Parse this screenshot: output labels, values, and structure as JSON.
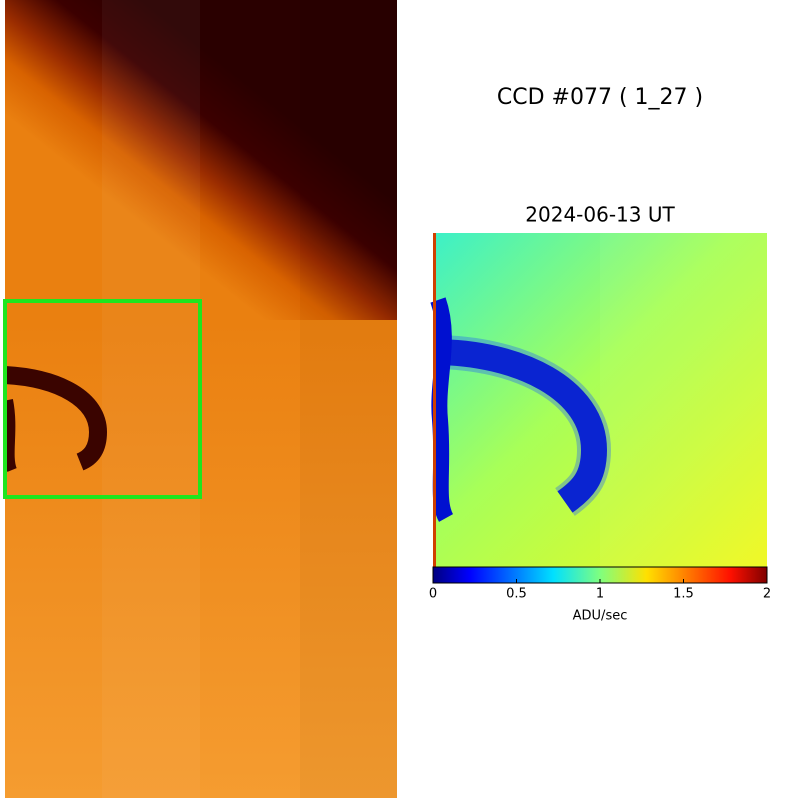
{
  "title": "CCD #077 ( 1_27 )",
  "subtitle": "2024-06-13 UT",
  "colorbar": {
    "label": "ADU/sec",
    "lim": [
      0,
      2
    ],
    "ticks": [
      0,
      0.5,
      1,
      1.5,
      2
    ],
    "colormap": "jet"
  }
}
